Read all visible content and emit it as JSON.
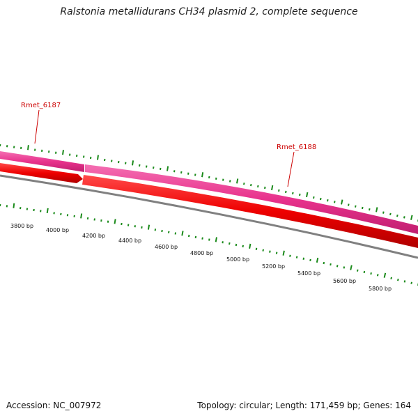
{
  "title": "Ralstonia metallidurans CH34 plasmid 2, complete sequence",
  "footer": {
    "accession": "Accession: NC_007972",
    "summary": "Topology: circular; Length: 171,459 bp; Genes: 164"
  },
  "genes": [
    {
      "name": "Rmet_6187",
      "color": "#cc0000"
    },
    {
      "name": "Rmet_6188",
      "color": "#cc0000"
    }
  ],
  "scale_labels": [
    "3800 bp",
    "4000 bp",
    "4200 bp",
    "4400 bp",
    "4600 bp",
    "4800 bp",
    "5000 bp",
    "5200 bp",
    "5400 bp",
    "5600 bp",
    "5800 bp"
  ],
  "colors": {
    "pink_track": "#e8328c",
    "red_track": "#ee0000",
    "backbone": "#808080",
    "ticks": "#1a8a1a",
    "label_red": "#cc0000"
  }
}
